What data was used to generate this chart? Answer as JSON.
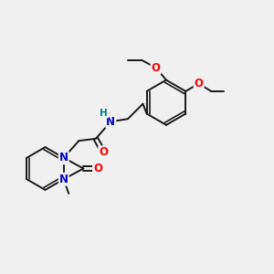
{
  "background_color": "#f0f0f0",
  "atom_colors": {
    "C": "#000000",
    "N": "#0000cc",
    "O": "#ff0000",
    "H": "#008080"
  },
  "bond_color": "#1a1a1a",
  "bond_width": 1.4,
  "font_size_atoms": 7.5,
  "figsize": [
    3.0,
    3.0
  ],
  "dpi": 100,
  "xlim": [
    0,
    10
  ],
  "ylim": [
    0,
    10
  ]
}
